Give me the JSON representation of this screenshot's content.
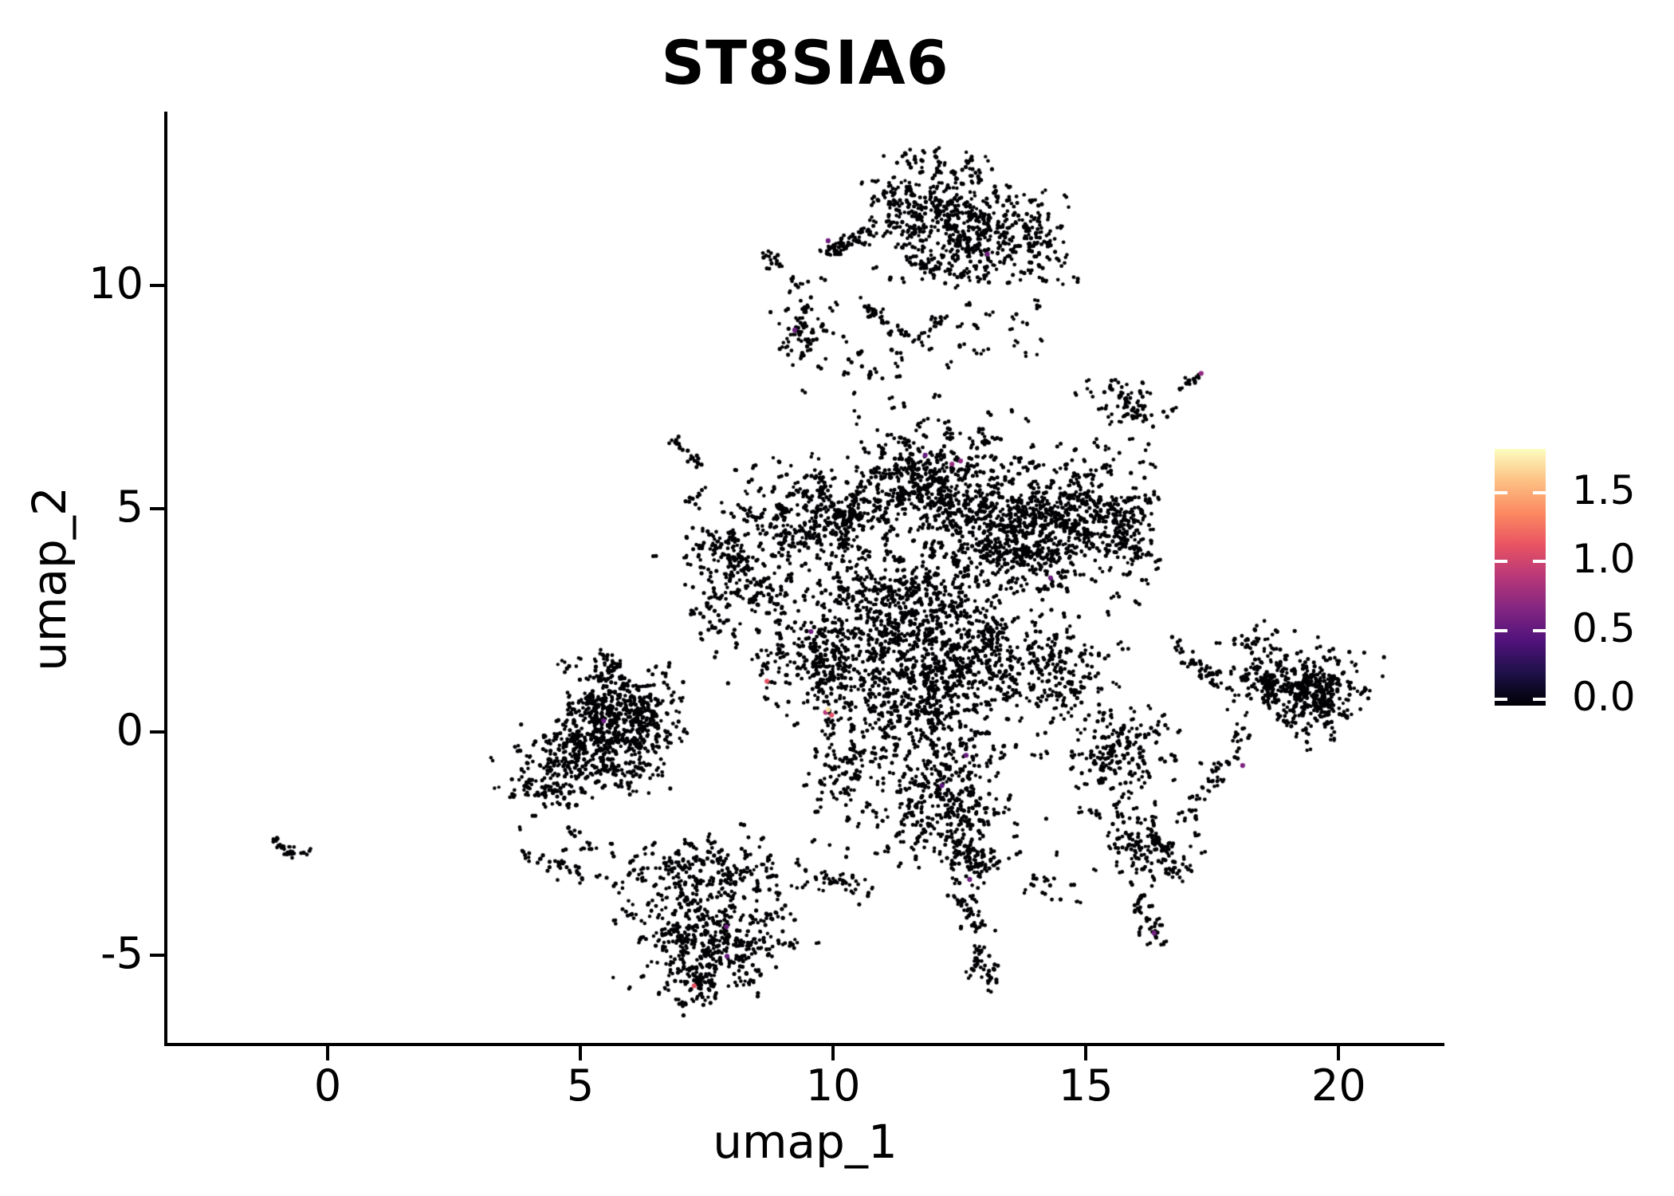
{
  "chart_data": {
    "type": "scatter",
    "title": "ST8SIA6",
    "xlabel": "umap_1",
    "ylabel": "umap_2",
    "xlim": [
      -3.17,
      22.06
    ],
    "ylim": [
      -6.96,
      13.89
    ],
    "grid": false,
    "background": "#ffffff",
    "point_color": "#000004",
    "point_radius": 2.4,
    "highlight_radius": 3.1,
    "seed": 1337,
    "x_ticks": [
      {
        "v": 0,
        "label": "0"
      },
      {
        "v": 5,
        "label": "5"
      },
      {
        "v": 10,
        "label": "10"
      },
      {
        "v": 15,
        "label": "15"
      },
      {
        "v": 20,
        "label": "20"
      }
    ],
    "y_ticks": [
      {
        "v": -5,
        "label": "-5"
      },
      {
        "v": 0,
        "label": "0"
      },
      {
        "v": 5,
        "label": "5"
      },
      {
        "v": 10,
        "label": "10"
      }
    ],
    "colorbar": {
      "vmin": 0.0,
      "vmax": 1.82,
      "legend_position": "right",
      "ticks": [
        {
          "v": 1.5,
          "label": "1.5"
        },
        {
          "v": 1.0,
          "label": "1.0"
        },
        {
          "v": 0.5,
          "label": "0.5"
        },
        {
          "v": 0.0,
          "label": "0.0"
        }
      ],
      "gradient": [
        {
          "f": 0.0,
          "c": "#000004"
        },
        {
          "f": 0.125,
          "c": "#1d1147"
        },
        {
          "f": 0.25,
          "c": "#50127b"
        },
        {
          "f": 0.375,
          "c": "#822681"
        },
        {
          "f": 0.5,
          "c": "#b73779"
        },
        {
          "f": 0.625,
          "c": "#e85362"
        },
        {
          "f": 0.75,
          "c": "#fc8961"
        },
        {
          "f": 0.875,
          "c": "#fdc083"
        },
        {
          "f": 1.0,
          "c": "#fcfdbf"
        }
      ]
    },
    "clusters": [
      {
        "type": "gauss",
        "cx": 11.7,
        "cy": 11.7,
        "sx": 0.5,
        "sy": 0.45,
        "n": 150
      },
      {
        "type": "gauss",
        "cx": 13.0,
        "cy": 11.35,
        "sx": 0.55,
        "sy": 0.5,
        "n": 170
      },
      {
        "type": "gauss",
        "cx": 12.3,
        "cy": 10.5,
        "sx": 0.55,
        "sy": 0.3,
        "n": 80
      },
      {
        "type": "gauss",
        "cx": 14.15,
        "cy": 10.9,
        "sx": 0.3,
        "sy": 0.45,
        "n": 55
      },
      {
        "type": "gauss",
        "cx": 11.7,
        "cy": 12.8,
        "sx": 0.3,
        "sy": 0.2,
        "n": 18
      },
      {
        "type": "gauss",
        "cx": 12.7,
        "cy": 12.55,
        "sx": 0.2,
        "sy": 0.15,
        "n": 8
      },
      {
        "type": "line",
        "x1": 9.8,
        "y1": 10.75,
        "x2": 10.9,
        "y2": 11.2,
        "jitter": 0.09,
        "n": 45
      },
      {
        "type": "gauss",
        "cx": 8.75,
        "cy": 10.55,
        "sx": 0.14,
        "sy": 0.18,
        "n": 11
      },
      {
        "type": "gauss",
        "cx": 9.15,
        "cy": 10.15,
        "sx": 0.1,
        "sy": 0.1,
        "n": 4
      },
      {
        "type": "gauss",
        "cx": 9.5,
        "cy": 8.9,
        "sx": 0.3,
        "sy": 0.5,
        "n": 55
      },
      {
        "type": "line",
        "x1": 10.6,
        "y1": 9.6,
        "x2": 11.3,
        "y2": 8.9,
        "jitter": 0.08,
        "n": 22
      },
      {
        "type": "line",
        "x1": 11.5,
        "y1": 8.7,
        "x2": 12.2,
        "y2": 9.3,
        "jitter": 0.08,
        "n": 18
      },
      {
        "type": "uniform",
        "x0": 10.2,
        "x1": 12.4,
        "y0": 7.9,
        "y1": 8.6,
        "n": 16
      },
      {
        "type": "uniform",
        "x0": 12.5,
        "x1": 14.2,
        "y0": 8.4,
        "y1": 9.8,
        "n": 20
      },
      {
        "type": "uniform",
        "x0": 10.4,
        "x1": 13.6,
        "y0": 6.4,
        "y1": 7.6,
        "n": 30
      },
      {
        "type": "gauss",
        "cx": 15.9,
        "cy": 7.3,
        "sx": 0.42,
        "sy": 0.22,
        "n": 55,
        "rot": -18
      },
      {
        "type": "line",
        "x1": 16.85,
        "y1": 7.7,
        "x2": 17.25,
        "y2": 8.0,
        "jitter": 0.05,
        "n": 8
      },
      {
        "type": "gauss",
        "cx": 11.8,
        "cy": 5.6,
        "sx": 0.75,
        "sy": 0.5,
        "n": 300
      },
      {
        "type": "gauss",
        "cx": 9.7,
        "cy": 4.7,
        "sx": 0.7,
        "sy": 0.55,
        "n": 270
      },
      {
        "type": "gauss",
        "cx": 13.5,
        "cy": 4.4,
        "sx": 0.9,
        "sy": 0.75,
        "n": 500
      },
      {
        "type": "gauss",
        "cx": 14.9,
        "cy": 4.9,
        "sx": 0.5,
        "sy": 0.5,
        "n": 170
      },
      {
        "type": "gauss",
        "cx": 11.2,
        "cy": 2.9,
        "sx": 0.9,
        "sy": 0.6,
        "n": 350
      },
      {
        "type": "gauss",
        "cx": 11.7,
        "cy": 0.8,
        "sx": 0.85,
        "sy": 0.7,
        "n": 380
      },
      {
        "type": "gauss",
        "cx": 9.9,
        "cy": 1.6,
        "sx": 0.6,
        "sy": 0.6,
        "n": 200
      },
      {
        "type": "gauss",
        "cx": 8.2,
        "cy": 3.4,
        "sx": 0.55,
        "sy": 0.9,
        "n": 150
      },
      {
        "type": "gauss",
        "cx": 12.9,
        "cy": 1.9,
        "sx": 0.6,
        "sy": 0.5,
        "n": 180
      },
      {
        "type": "gauss",
        "cx": 14.5,
        "cy": 1.2,
        "sx": 0.55,
        "sy": 0.6,
        "n": 150
      },
      {
        "type": "gauss",
        "cx": 15.8,
        "cy": 4.5,
        "sx": 0.35,
        "sy": 0.7,
        "n": 100
      },
      {
        "type": "line",
        "x1": 6.75,
        "y1": 6.55,
        "x2": 7.35,
        "y2": 6.0,
        "jitter": 0.05,
        "n": 14
      },
      {
        "type": "gauss",
        "cx": 7.35,
        "cy": 5.3,
        "sx": 0.15,
        "sy": 0.12,
        "n": 6
      },
      {
        "type": "uniform",
        "x0": 7.0,
        "x1": 8.1,
        "y0": 1.8,
        "y1": 4.6,
        "n": 45
      },
      {
        "type": "gauss",
        "cx": 10.3,
        "cy": -0.9,
        "sx": 0.4,
        "sy": 0.35,
        "n": 70
      },
      {
        "type": "gauss",
        "cx": 12.3,
        "cy": -0.9,
        "sx": 0.5,
        "sy": 0.4,
        "n": 80
      },
      {
        "type": "gauss",
        "cx": 5.6,
        "cy": 0.4,
        "sx": 0.55,
        "sy": 0.5,
        "n": 230
      },
      {
        "type": "gauss",
        "cx": 5.3,
        "cy": -0.5,
        "sx": 0.55,
        "sy": 0.45,
        "n": 180
      },
      {
        "type": "gauss",
        "cx": 6.3,
        "cy": 0.0,
        "sx": 0.35,
        "sy": 0.55,
        "n": 100
      },
      {
        "type": "gauss",
        "cx": 4.35,
        "cy": -1.0,
        "sx": 0.4,
        "sy": 0.4,
        "n": 80
      },
      {
        "type": "gauss",
        "cx": 5.5,
        "cy": 1.45,
        "sx": 0.25,
        "sy": 0.2,
        "n": 28
      },
      {
        "type": "line",
        "x1": 3.95,
        "y1": -2.8,
        "x2": 4.6,
        "y2": -3.0,
        "jitter": 0.07,
        "n": 12
      },
      {
        "type": "uniform",
        "x0": 4.6,
        "x1": 5.7,
        "y0": -2.9,
        "y1": -2.1,
        "n": 14
      },
      {
        "type": "gauss",
        "cx": 7.3,
        "cy": -3.1,
        "sx": 0.75,
        "sy": 0.4,
        "n": 170
      },
      {
        "type": "gauss",
        "cx": 7.5,
        "cy": -4.7,
        "sx": 0.7,
        "sy": 0.55,
        "n": 280
      },
      {
        "type": "gauss",
        "cx": 7.3,
        "cy": -5.55,
        "sx": 0.3,
        "sy": 0.25,
        "n": 45
      },
      {
        "type": "line",
        "x1": 4.6,
        "y1": -3.0,
        "x2": 5.7,
        "y2": -3.35,
        "jitter": 0.1,
        "n": 12
      },
      {
        "type": "uniform",
        "x0": 8.6,
        "x1": 9.3,
        "y0": -5.0,
        "y1": -3.4,
        "n": 30
      },
      {
        "type": "line",
        "x1": 9.3,
        "y1": -3.15,
        "x2": 10.6,
        "y2": -3.5,
        "jitter": 0.12,
        "n": 32
      },
      {
        "type": "gauss",
        "cx": 12.2,
        "cy": -1.8,
        "sx": 0.6,
        "sy": 0.5,
        "n": 130
      },
      {
        "type": "gauss",
        "cx": 12.6,
        "cy": -2.9,
        "sx": 0.4,
        "sy": 0.4,
        "n": 80
      },
      {
        "type": "line",
        "x1": 12.55,
        "y1": -3.6,
        "x2": 13.0,
        "y2": -5.2,
        "jitter": 0.15,
        "n": 40
      },
      {
        "type": "gauss",
        "cx": 12.95,
        "cy": -5.5,
        "sx": 0.18,
        "sy": 0.22,
        "n": 16
      },
      {
        "type": "gauss",
        "cx": 14.1,
        "cy": -3.5,
        "sx": 0.28,
        "sy": 0.18,
        "n": 13
      },
      {
        "type": "uniform",
        "x0": 9.6,
        "x1": 11.6,
        "y0": -2.8,
        "y1": -1.6,
        "n": 14
      },
      {
        "type": "gauss",
        "cx": 15.6,
        "cy": -0.5,
        "sx": 0.5,
        "sy": 0.55,
        "n": 130
      },
      {
        "type": "line",
        "x1": 18.25,
        "y1": 0.2,
        "x2": 17.1,
        "y2": -1.9,
        "jitter": 0.1,
        "n": 30
      },
      {
        "type": "gauss",
        "cx": 16.3,
        "cy": -2.6,
        "sx": 0.55,
        "sy": 0.4,
        "n": 100
      },
      {
        "type": "line",
        "x1": 16.0,
        "y1": -3.6,
        "x2": 16.45,
        "y2": -4.85,
        "jitter": 0.1,
        "n": 30
      },
      {
        "type": "uniform",
        "x0": 14.9,
        "x1": 15.9,
        "y0": -2.4,
        "y1": -1.6,
        "n": 14
      },
      {
        "type": "gauss",
        "cx": 19.0,
        "cy": 1.1,
        "sx": 0.6,
        "sy": 0.4,
        "n": 230
      },
      {
        "type": "gauss",
        "cx": 19.6,
        "cy": 0.55,
        "sx": 0.45,
        "sy": 0.35,
        "n": 100
      },
      {
        "type": "line",
        "x1": 16.6,
        "y1": 2.1,
        "x2": 17.7,
        "y2": 0.95,
        "jitter": 0.12,
        "n": 26
      },
      {
        "type": "gauss",
        "cx": 18.3,
        "cy": 2.0,
        "sx": 0.3,
        "sy": 0.15,
        "n": 20
      },
      {
        "type": "line",
        "x1": -1.05,
        "y1": -2.45,
        "x2": -0.6,
        "y2": -2.85,
        "jitter": 0.05,
        "n": 14
      },
      {
        "type": "gauss",
        "cx": -0.45,
        "cy": -2.7,
        "sx": 0.05,
        "sy": 0.05,
        "n": 2
      },
      {
        "type": "uniform",
        "x0": 9.5,
        "x1": 14.8,
        "y0": -2.9,
        "y1": -1.3,
        "n": 18
      },
      {
        "type": "uniform",
        "x0": 8.3,
        "x1": 10.1,
        "y0": 5.3,
        "y1": 6.6,
        "n": 14
      },
      {
        "type": "uniform",
        "x0": 13.8,
        "x1": 15.6,
        "y0": 5.8,
        "y1": 7.0,
        "n": 12
      }
    ],
    "expressing_cells": [
      {
        "x": 9.9,
        "y": 11.0,
        "value": 0.6,
        "color": "#6e1e81"
      },
      {
        "x": 13.05,
        "y": 10.7,
        "value": 0.6,
        "color": "#71207f"
      },
      {
        "x": 9.24,
        "y": 9.0,
        "value": 0.6,
        "color": "#6e1e81"
      },
      {
        "x": 17.28,
        "y": 8.03,
        "value": 0.8,
        "color": "#932b80"
      },
      {
        "x": 11.82,
        "y": 6.2,
        "value": 0.55,
        "color": "#671a80"
      },
      {
        "x": 12.35,
        "y": 6.0,
        "value": 0.8,
        "color": "#9b2d80"
      },
      {
        "x": 12.52,
        "y": 6.07,
        "value": 0.75,
        "color": "#8f2a81"
      },
      {
        "x": 14.3,
        "y": 3.45,
        "value": 0.6,
        "color": "#6e1e81"
      },
      {
        "x": 9.56,
        "y": 2.25,
        "value": 0.6,
        "color": "#71207f"
      },
      {
        "x": 5.46,
        "y": 0.25,
        "value": 0.6,
        "color": "#6e1e81"
      },
      {
        "x": 8.69,
        "y": 1.14,
        "value": 1.15,
        "color": "#e85362"
      },
      {
        "x": 9.97,
        "y": 0.38,
        "value": 1.2,
        "color": "#e4506a"
      },
      {
        "x": 9.85,
        "y": 0.44,
        "value": 0.9,
        "color": "#b5367a"
      },
      {
        "x": 9.9,
        "y": 0.5,
        "value": 1.7,
        "color": "#fbe3a3"
      },
      {
        "x": 12.63,
        "y": -0.52,
        "value": 0.55,
        "color": "#671a80"
      },
      {
        "x": 12.15,
        "y": -1.2,
        "value": 0.5,
        "color": "#5f187f"
      },
      {
        "x": 12.7,
        "y": -3.3,
        "value": 0.6,
        "color": "#6e1e81"
      },
      {
        "x": 18.1,
        "y": -0.75,
        "value": 0.7,
        "color": "#7e2482"
      },
      {
        "x": 16.35,
        "y": -4.5,
        "value": 0.6,
        "color": "#71207f"
      },
      {
        "x": 7.89,
        "y": -4.36,
        "value": 0.6,
        "color": "#6e1e81"
      },
      {
        "x": 7.9,
        "y": -5.02,
        "value": 0.55,
        "color": "#671a80"
      },
      {
        "x": 7.25,
        "y": -5.68,
        "value": 1.25,
        "color": "#e75263"
      }
    ]
  }
}
